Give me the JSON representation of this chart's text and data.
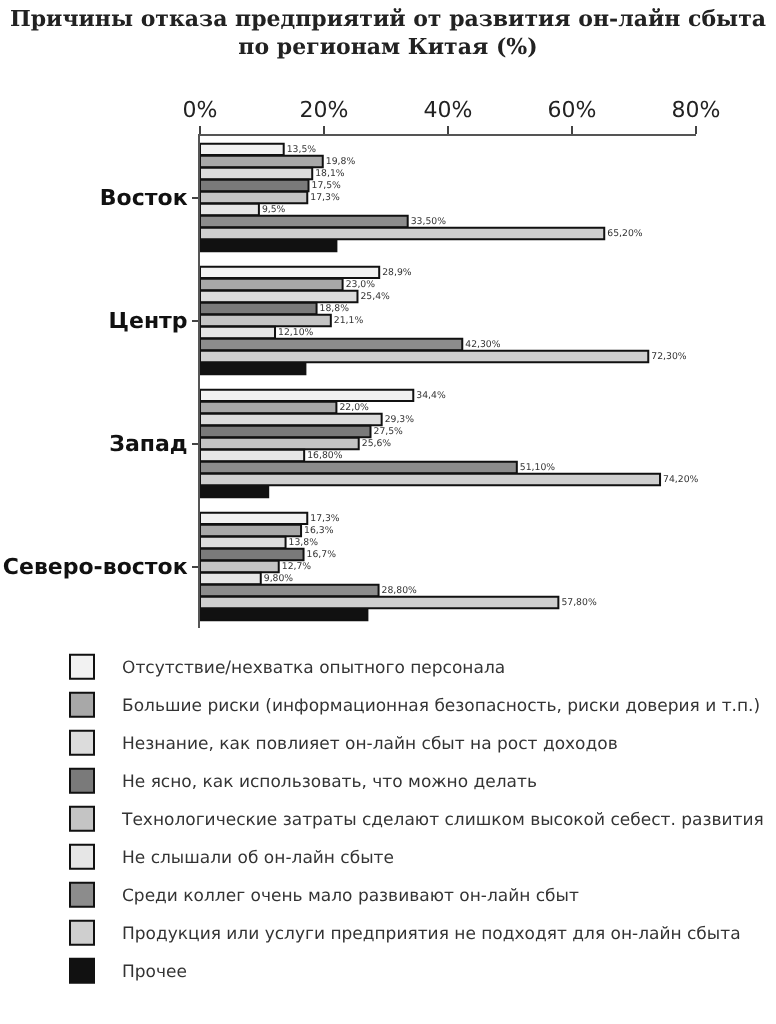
{
  "chart_data": {
    "type": "bar",
    "orientation": "horizontal",
    "title": "Причины отказа предприятий от развития он-лайн сбыта по регионам Китая (%)",
    "categories": [
      "Восток",
      "Центр",
      "Запад",
      "Северо-восток"
    ],
    "xlim": [
      0,
      80
    ],
    "xticks": [
      {
        "value": 0,
        "label": "0%"
      },
      {
        "value": 20,
        "label": "20%"
      },
      {
        "value": 40,
        "label": "40%"
      },
      {
        "value": 60,
        "label": "60%"
      },
      {
        "value": 80,
        "label": "80%"
      }
    ],
    "grid": false,
    "legend": "bottom",
    "series": [
      {
        "name": "Отсутствие/нехватка опытного персонала",
        "color": "#f2f2f2",
        "values": [
          13.5,
          28.9,
          34.4,
          17.3
        ],
        "value_labels": [
          "13,5%",
          "28,9%",
          "34,4%",
          "17,3%"
        ]
      },
      {
        "name": "Большие риски (информационная безопасность, риски доверия и т.п.)",
        "color": "#a8a8a8",
        "values": [
          19.8,
          23.0,
          22.0,
          16.3
        ],
        "value_labels": [
          "19,8%",
          "23,0%",
          "22,0%",
          "16,3%"
        ]
      },
      {
        "name": "Незнание, как повлияет он-лайн сбыт на рост доходов",
        "color": "#dcdcdc",
        "values": [
          18.1,
          25.4,
          29.3,
          13.8
        ],
        "value_labels": [
          "18,1%",
          "25,4%",
          "29,3%",
          "13,8%"
        ]
      },
      {
        "name": "Не ясно, как использовать, что можно делать",
        "color": "#7a7a7a",
        "values": [
          17.5,
          18.8,
          27.5,
          16.7
        ],
        "value_labels": [
          "17,5%",
          "18,8%",
          "27,5%",
          "16,7%"
        ]
      },
      {
        "name": "Технологические затраты сделают слишком высокой себест. развития",
        "color": "#c4c4c4",
        "values": [
          17.3,
          21.1,
          25.6,
          12.7
        ],
        "value_labels": [
          "17,3%",
          "21,1%",
          "25,6%",
          "12,7%"
        ]
      },
      {
        "name": "Не слышали об он-лайн сбыте",
        "color": "#e6e6e6",
        "values": [
          9.5,
          12.1,
          16.8,
          9.8
        ],
        "value_labels": [
          "9,5%",
          "12,10%",
          "16,80%",
          "9,80%"
        ]
      },
      {
        "name": "Среди коллег очень мало развивают он-лайн сбыт",
        "color": "#8c8c8c",
        "values": [
          33.5,
          42.3,
          51.1,
          28.8
        ],
        "value_labels": [
          "33,50%",
          "42,30%",
          "51,10%",
          "28,80%"
        ]
      },
      {
        "name": "Продукция или услуги предприятия не подходят для он-лайн сбыта",
        "color": "#cfcfcf",
        "values": [
          65.2,
          72.3,
          74.2,
          57.8
        ],
        "value_labels": [
          "65,20%",
          "72,30%",
          "74,20%",
          "57,80%"
        ]
      },
      {
        "name": "Прочее",
        "color": "#111111",
        "values": [
          22,
          17,
          11,
          27
        ],
        "value_labels": [
          null,
          null,
          null,
          null
        ]
      }
    ]
  }
}
